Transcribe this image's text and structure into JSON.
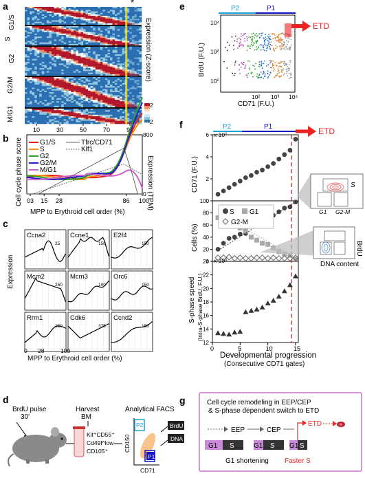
{
  "panels": {
    "a": "a",
    "b": "b",
    "c": "c",
    "d": "d",
    "e": "e",
    "f": "f",
    "g": "g"
  },
  "panel_a": {
    "row_groups": [
      "G1/S",
      "S",
      "G2",
      "G2/M",
      "M/G1"
    ],
    "colorbar_label": "Expression (Z-score)",
    "colorbar_ticks": [
      "2",
      "0",
      "-2"
    ],
    "x_ticks": [
      "10",
      "30",
      "50",
      "70",
      "90"
    ],
    "star": "*",
    "colors": {
      "low": "#2b6fb3",
      "mid": "#f4f4f4",
      "high": "#b2182b",
      "highlight": "#f3e21a"
    }
  },
  "panel_b": {
    "y_left_label": "Cell cycle phase score",
    "y_right_label": "Expression (TPM)",
    "y_right_ticks": [
      "800",
      "400",
      "0"
    ],
    "x_ticks": [
      "03",
      "15",
      "28",
      "86",
      "100"
    ],
    "x_label": "MPP to Erythroid cell order (%)",
    "legend": [
      {
        "name": "G1/S",
        "color": "#e41a1c"
      },
      {
        "name": "S",
        "color": "#ff8c00"
      },
      {
        "name": "G2",
        "color": "#2ca02c"
      },
      {
        "name": "G2/M",
        "color": "#1f1fd0"
      },
      {
        "name": "M/G1",
        "color": "#d060d0"
      }
    ],
    "legend2": [
      "Tfrc/CD71",
      "Klf1"
    ]
  },
  "panel_c": {
    "y_label": "Expression",
    "genes": [
      "Ccna2",
      "Ccne1",
      "E2f4",
      "Mcm2",
      "Mcm3",
      "Orc6",
      "Rrm1",
      "Cdk6",
      "Ccnd2"
    ],
    "scale_labels": [
      "25",
      "150",
      "150",
      "250",
      "100",
      "150",
      "250",
      "375",
      "150"
    ],
    "x_ticks": [
      "0",
      "28",
      "100"
    ],
    "x_label": "MPP to Erythroid cell order (%)"
  },
  "panel_d": {
    "pulse": "BrdU pulse",
    "pulse_time": "30'",
    "harvest": "Harvest",
    "bm": "BM",
    "markers": [
      "Kit⁺CD55⁺",
      "Cd49f^low",
      "CD105⁺"
    ],
    "facs_title": "Analytical FACS",
    "gate_p2": "P2",
    "gate_p1": "P1",
    "y_axis": "CD150",
    "x_axis": "CD71",
    "outputs": [
      "BrdU",
      "DNA"
    ]
  },
  "panel_e": {
    "top_labels": [
      "P2",
      "P1"
    ],
    "etd": "ETD",
    "y_label": "BrdU (F.U.)",
    "x_label": "CD71 (F.U.)",
    "y_ticks": [
      "10⁴",
      "10²",
      "10⁰"
    ],
    "x_ticks": [
      "10²",
      "10³",
      "10⁴"
    ]
  },
  "panel_f": {
    "top_labels": [
      "P2",
      "P1"
    ],
    "etd": "ETD",
    "cd71_label": "CD71 (F.U.)",
    "cd71_exp": "x 10³",
    "cd71_ticks": [
      "6",
      "4",
      "2",
      "0"
    ],
    "cells_label": "Cells (%)",
    "cells_ticks": [
      "100",
      "80",
      "60",
      "40",
      "20",
      "0"
    ],
    "legend": [
      "S",
      "G1",
      "G2-M"
    ],
    "sphase_label": "S-phase speed",
    "sphase_sub": "(Intra-S-phase BrdU, F.U.)",
    "sphase_exp": "x 10³",
    "sphase_ticks": [
      "24",
      "22",
      "20",
      "18",
      "16",
      "14",
      "12"
    ],
    "x_ticks": [
      "0",
      "5",
      "10",
      "15"
    ],
    "x_label": "Developmental progression",
    "x_sublabel": "(Consecutive CD71 gates)",
    "inset_labels": [
      "S",
      "G1",
      "G2-M"
    ],
    "inset2_labels": [
      "BrdU",
      "DNA content"
    ]
  },
  "panel_g": {
    "title1": "Cell cycle remodeling in EEP/CEP",
    "title2": "& S-phase dependent switch to ETD",
    "stages": [
      "EEP",
      "CEP",
      "ETD"
    ],
    "blocks": [
      "G1",
      "S",
      "G1",
      "S",
      "G1",
      "S"
    ],
    "note1": "G1 shortening",
    "note2": "Faster S"
  },
  "chart_data": [
    {
      "type": "line",
      "title": "",
      "xlabel": "Consecutive CD71 gates",
      "ylabel": "CD71 (F.U.) x 10³",
      "x": [
        1,
        2,
        3,
        4,
        5,
        6,
        7,
        8,
        9,
        10,
        11,
        12,
        13,
        14,
        15
      ],
      "series": [
        {
          "values": [
            0.6,
            0.9,
            1.2,
            1.5,
            1.8,
            2.1,
            2.3,
            2.6,
            2.8,
            3.1,
            3.4,
            3.8,
            4.2,
            4.6,
            5.6
          ]
        }
      ],
      "ylim": [
        0,
        6
      ]
    },
    {
      "type": "scatter",
      "title": "",
      "xlabel": "Consecutive CD71 gates",
      "ylabel": "Cells (%)",
      "x": [
        1,
        2,
        3,
        4,
        5,
        6,
        7,
        8,
        9,
        10,
        11,
        12,
        13,
        14,
        15
      ],
      "series": [
        {
          "name": "S",
          "values": [
            20,
            30,
            38,
            40,
            45,
            46,
            58,
            60,
            66,
            68,
            76,
            82,
            88,
            90,
            98
          ]
        },
        {
          "name": "G1",
          "values": [
            72,
            78,
            62,
            58,
            55,
            50,
            40,
            35,
            30,
            28,
            22,
            16,
            12,
            10,
            4
          ]
        },
        {
          "name": "G2-M",
          "values": [
            6,
            6,
            7,
            5,
            6,
            5,
            5,
            6,
            6,
            5,
            6,
            5,
            5,
            5,
            6
          ]
        }
      ],
      "ylim": [
        0,
        100
      ]
    },
    {
      "type": "scatter",
      "title": "",
      "xlabel": "Consecutive CD71 gates",
      "ylabel": "S-phase speed x 10³",
      "x": [
        1,
        2,
        3,
        4,
        5,
        6,
        7,
        8,
        9,
        10,
        11,
        12,
        13,
        14,
        15
      ],
      "series": [
        {
          "values": [
            13.4,
            13.3,
            13.2,
            13.5,
            13.6,
            16.5,
            16.7,
            16.9,
            17.2,
            17.8,
            18.2,
            18.8,
            19.6,
            20.5,
            21.8
          ]
        }
      ],
      "ylim": [
        12,
        24
      ]
    }
  ]
}
